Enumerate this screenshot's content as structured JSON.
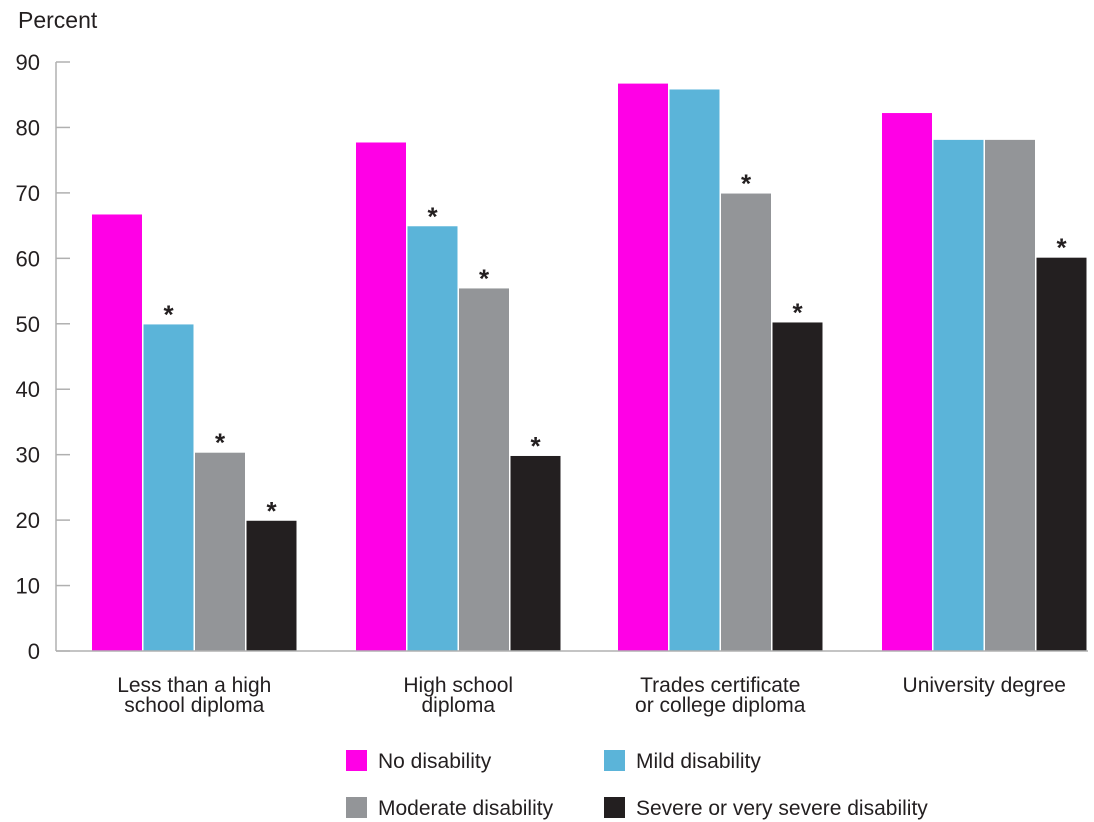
{
  "chart_data": {
    "type": "bar",
    "ylabel": "Percent",
    "ylim": [
      0,
      90
    ],
    "yticks": [
      0,
      10,
      20,
      30,
      40,
      50,
      60,
      70,
      80,
      90
    ],
    "categories": [
      [
        "Less than a high",
        "school diploma"
      ],
      [
        "High school",
        "diploma"
      ],
      [
        "Trades certificate",
        "or college diploma"
      ],
      [
        "University degree"
      ]
    ],
    "series": [
      {
        "name": "No disability",
        "color": "#ff00e6",
        "values": [
          66.7,
          77.7,
          86.7,
          82.2
        ],
        "significant": [
          false,
          false,
          false,
          false
        ]
      },
      {
        "name": "Mild disability",
        "color": "#5bb4d9",
        "values": [
          49.9,
          64.9,
          85.8,
          78.1
        ],
        "significant": [
          true,
          true,
          false,
          false
        ]
      },
      {
        "name": "Moderate disability",
        "color": "#939598",
        "values": [
          30.3,
          55.4,
          69.9,
          78.1
        ],
        "significant": [
          true,
          true,
          true,
          false
        ]
      },
      {
        "name": "Severe or very severe disability",
        "color": "#231f20",
        "values": [
          19.9,
          29.8,
          50.2,
          60.1
        ],
        "significant": [
          true,
          true,
          true,
          true
        ]
      }
    ],
    "significance_marker": "*",
    "grid": false,
    "legend_position": "bottom"
  }
}
